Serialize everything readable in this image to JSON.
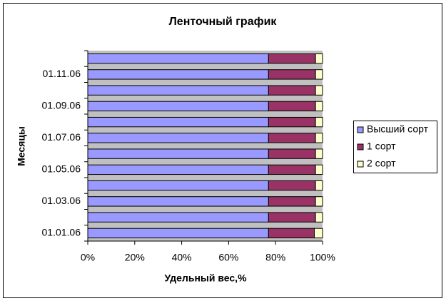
{
  "chart_data": {
    "type": "stacked-barh",
    "title": "Ленточный график",
    "x_label": "Удельный вес,%",
    "y_label": "Месяцы",
    "categories": [
      "01.01.06",
      null,
      "01.03.06",
      null,
      "01.05.06",
      null,
      "01.07.06",
      null,
      "01.09.06",
      null,
      "01.11.06",
      null
    ],
    "series": [
      {
        "name": "Высший сорт",
        "color": "#9999ff",
        "values": [
          77,
          77,
          77,
          77,
          77,
          77,
          77,
          77,
          77,
          77,
          77,
          77
        ]
      },
      {
        "name": "1 сорт",
        "color": "#993366",
        "values": [
          19.5,
          20,
          20,
          20,
          20,
          20,
          20,
          20,
          20,
          20,
          20,
          20
        ]
      },
      {
        "name": "2 сорт",
        "color": "#ffffcc",
        "values": [
          3.5,
          3,
          3,
          3,
          3,
          3,
          3,
          3,
          3,
          3,
          3,
          3
        ]
      }
    ],
    "xlim": [
      0,
      100
    ],
    "xticks": [
      {
        "value": 0,
        "label": "0%"
      },
      {
        "value": 20,
        "label": "20%"
      },
      {
        "value": 40,
        "label": "40%"
      },
      {
        "value": 60,
        "label": "60%"
      },
      {
        "value": 80,
        "label": "80%"
      },
      {
        "value": 100,
        "label": "100%"
      }
    ],
    "legend": "right"
  }
}
